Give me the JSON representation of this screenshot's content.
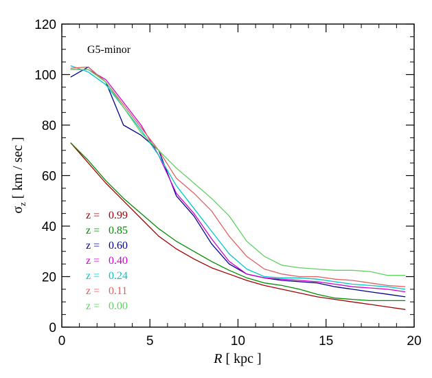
{
  "chart_data": {
    "type": "line",
    "annotation": "G5-minor",
    "xlabel": {
      "main": "R",
      "unit": "[ kpc ]"
    },
    "ylabel": {
      "sym": "σ",
      "sub": "z",
      "unit": "[ km / sec ]"
    },
    "xlim": [
      0,
      20
    ],
    "ylim": [
      0,
      120
    ],
    "xticks": [
      0,
      5,
      10,
      15,
      20
    ],
    "yticks": [
      0,
      20,
      40,
      60,
      80,
      100,
      120
    ],
    "x": [
      0.5,
      1.5,
      2.5,
      3.5,
      4.5,
      5.5,
      6.5,
      7.5,
      8.5,
      9.5,
      10.5,
      11.5,
      12.5,
      13.5,
      14.5,
      15.5,
      16.5,
      17.5,
      18.5,
      19.5
    ],
    "legend_prefix": "z =",
    "legend_placement": "lower-left",
    "series": [
      {
        "name": "0.99",
        "color": "#a00000",
        "values": [
          73,
          65,
          57,
          50,
          43,
          36,
          31,
          27,
          23.5,
          21,
          18.5,
          16.5,
          15,
          13.5,
          12,
          11,
          10,
          9,
          8,
          7
        ]
      },
      {
        "name": "0.85",
        "color": "#008c00",
        "values": [
          73,
          66,
          58,
          51,
          45,
          39,
          34,
          30,
          26,
          22.5,
          19.5,
          17.5,
          16.5,
          15,
          13,
          11.5,
          11,
          10.5,
          10.5,
          10.5
        ]
      },
      {
        "name": "0.60",
        "color": "#00008c",
        "values": [
          99,
          103,
          97,
          80,
          76,
          70,
          52,
          44,
          33,
          25,
          21,
          19.5,
          18.5,
          18,
          17.5,
          16,
          15,
          14,
          13,
          12
        ]
      },
      {
        "name": "0.40",
        "color": "#d000d0",
        "values": [
          102,
          102,
          98,
          89,
          80,
          68,
          53,
          45,
          35,
          26,
          21,
          19.5,
          19,
          18.5,
          18,
          17,
          16,
          15.5,
          15,
          14
        ]
      },
      {
        "name": "0.24",
        "color": "#00c8c8",
        "values": [
          103.5,
          101,
          96,
          87,
          78,
          68,
          56,
          47,
          38,
          29,
          23,
          20,
          19.5,
          19.5,
          19,
          18,
          17,
          16.5,
          16,
          15
        ]
      },
      {
        "name": "0.11",
        "color": "#e06060",
        "values": [
          102.5,
          103,
          97,
          88,
          79,
          70,
          59,
          53,
          46,
          36,
          28,
          23,
          21,
          20,
          20,
          19,
          18.5,
          17.5,
          16.5,
          16
        ]
      },
      {
        "name": "0.00",
        "color": "#60d060",
        "values": [
          102,
          102,
          97,
          87,
          77,
          70,
          63,
          57,
          51,
          44,
          34,
          28,
          24.5,
          23.5,
          23,
          22.5,
          22.5,
          22,
          20.5,
          20.5
        ]
      }
    ]
  }
}
